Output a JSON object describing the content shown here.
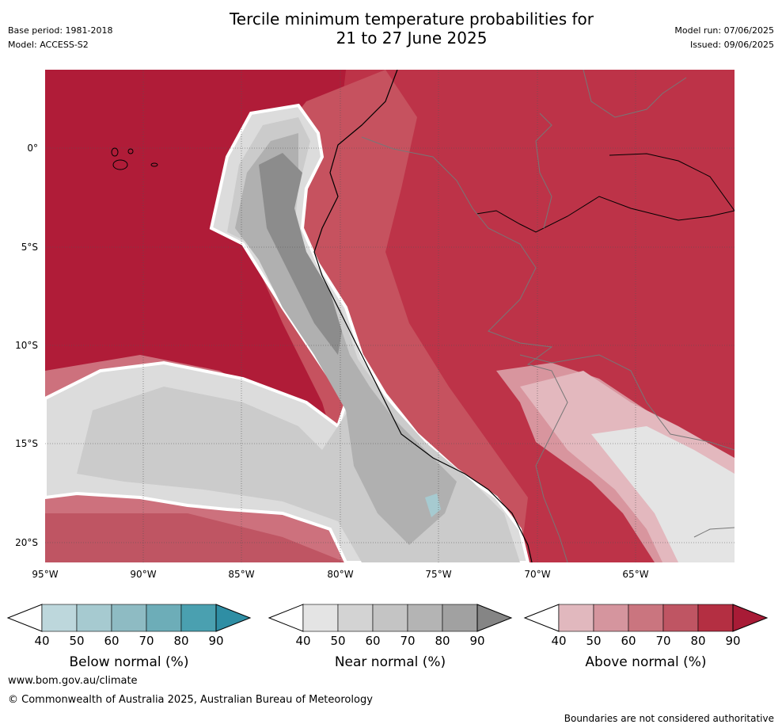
{
  "header": {
    "title_line1": "Tercile minimum temperature probabilities for",
    "title_line2": "21 to 27 June 2025",
    "base_period": "Base period: 1981-2018",
    "model": "Model: ACCESS-S2",
    "model_run": "Model run: 07/06/2025",
    "issued": "Issued: 09/06/2025"
  },
  "axes": {
    "lat_labels": [
      "0°",
      "5°S",
      "10°S",
      "15°S",
      "20°S"
    ],
    "lon_labels": [
      "95°W",
      "90°W",
      "85°W",
      "80°W",
      "75°W",
      "70°W",
      "65°W"
    ],
    "lon_range": [
      -95,
      -60
    ],
    "lat_range": [
      -21,
      4
    ]
  },
  "legends": [
    {
      "title": "Below normal (%)",
      "ticks": [
        "40",
        "50",
        "60",
        "70",
        "80",
        "90"
      ],
      "colors": [
        "#bdd7dc",
        "#a6cad0",
        "#8ebbc3",
        "#6dadb8",
        "#4aa0b0",
        "#2f8ea4"
      ]
    },
    {
      "title": "Near normal (%)",
      "ticks": [
        "40",
        "50",
        "60",
        "70",
        "80",
        "90"
      ],
      "colors": [
        "#e4e4e4",
        "#d3d3d3",
        "#c4c4c4",
        "#b4b4b4",
        "#a1a1a1",
        "#858585"
      ]
    },
    {
      "title": "Above normal (%)",
      "ticks": [
        "40",
        "50",
        "60",
        "70",
        "80",
        "90"
      ],
      "colors": [
        "#e1b8be",
        "#d5959e",
        "#ca757f",
        "#bf5563",
        "#b42f42",
        "#a81b36"
      ]
    }
  ],
  "colors": {
    "above_90": "#b01c38",
    "above_80": "#bd3348",
    "above_70": "#c6525f",
    "above_60": "#cd717d",
    "above_50": "#d8959e",
    "above_40": "#e3b8be",
    "near_40": "#dcdcdc",
    "near_50": "#cbcbcb",
    "near_60": "#bcbcbc",
    "near_70": "#a8a8a8",
    "near_80": "#8c8c8c",
    "below_50": "#a6cad0"
  },
  "footer": {
    "url": "www.bom.gov.au/climate",
    "copyright": "© Commonwealth of Australia 2025, Australian Bureau of Meteorology",
    "disclaimer": "Boundaries are not considered authoritative"
  }
}
